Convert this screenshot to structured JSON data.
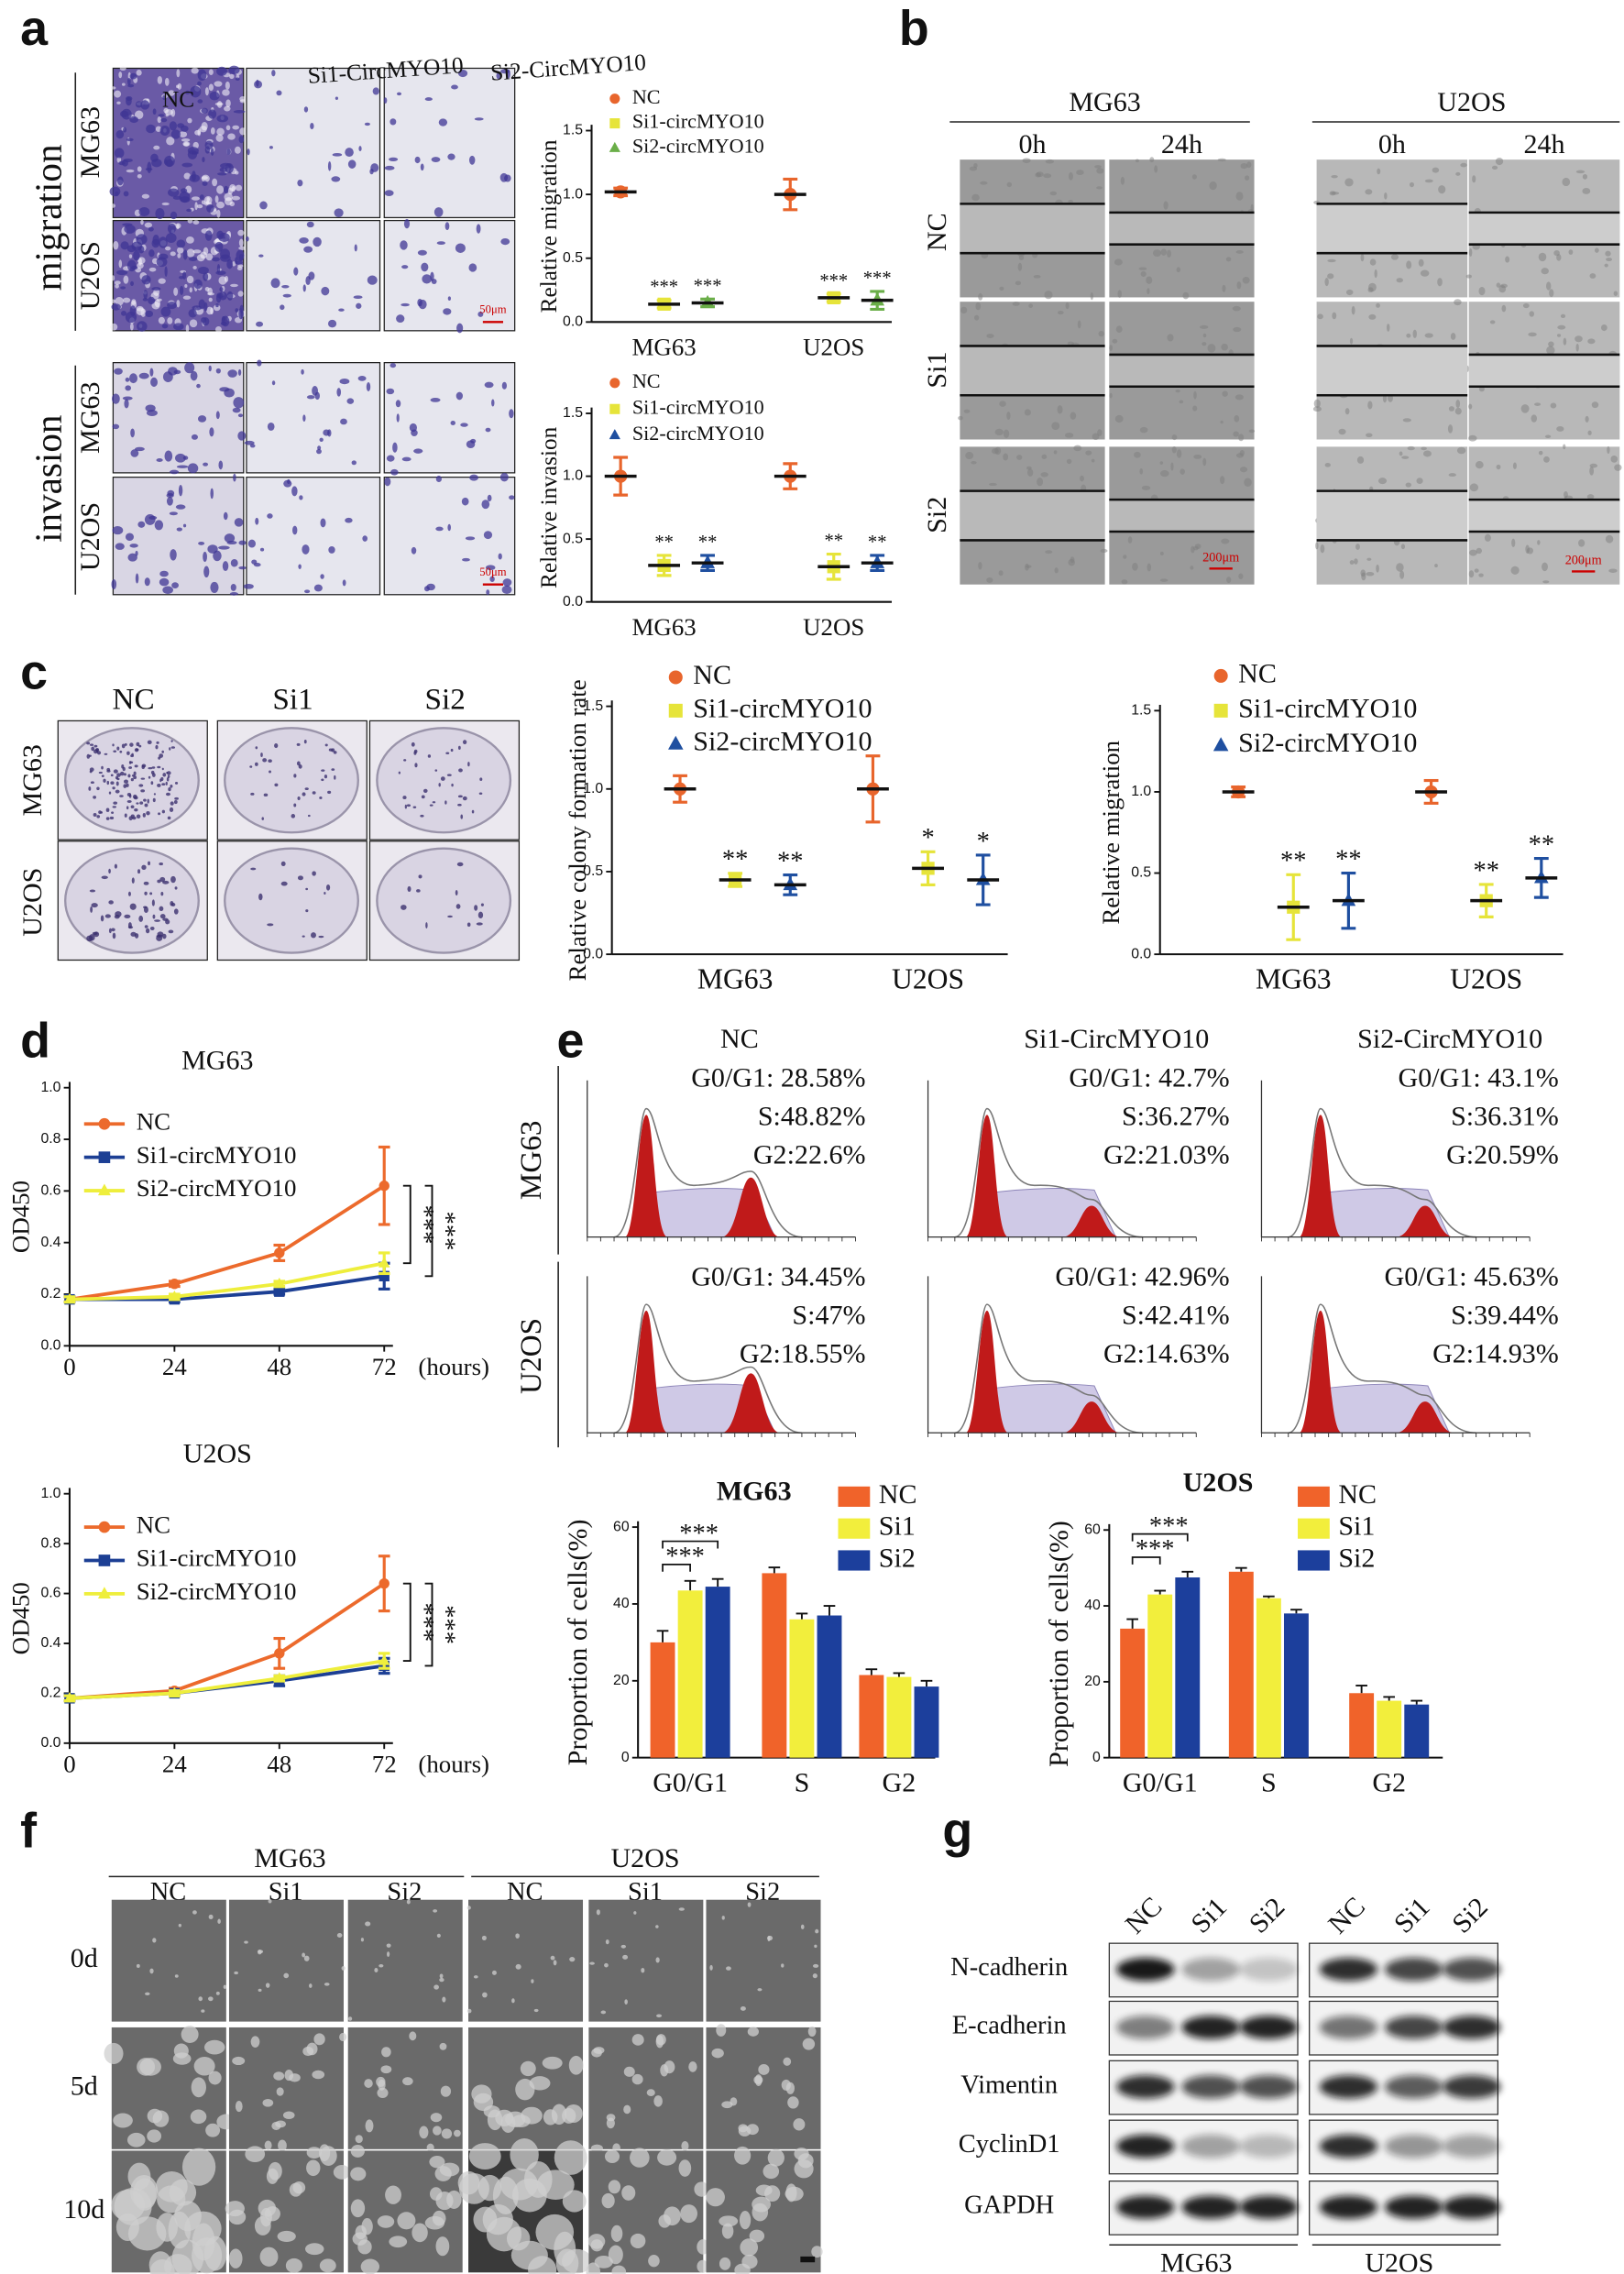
{
  "panel_labels": [
    "a",
    "b",
    "c",
    "d",
    "e",
    "f",
    "g"
  ],
  "panel_a": {
    "columns": [
      "NC",
      "Si1-CircMYO10",
      "Si2-CircMYO10"
    ],
    "groups": [
      "migration",
      "invasion"
    ],
    "rows": [
      "MG63",
      "U2OS"
    ],
    "scale_bar": "50μm"
  },
  "panel_b": {
    "cell_lines": [
      "MG63",
      "U2OS"
    ],
    "times": [
      "0h",
      "24h"
    ],
    "rows": [
      "NC",
      "Si1",
      "Si2"
    ],
    "scale_bar": "200μm"
  },
  "panel_c": {
    "columns": [
      "NC",
      "Si1",
      "Si2"
    ],
    "rows": [
      "MG63",
      "U2OS"
    ]
  },
  "panel_e": {
    "rows": [
      "MG63",
      "U2OS"
    ],
    "columns": [
      "NC",
      "Si1-CircMYO10",
      "Si2-CircMYO10"
    ],
    "stats": [
      [
        [
          "G0/G1: 28.58%",
          "S:48.82%",
          "G2:22.6%"
        ],
        [
          "G0/G1: 42.7%",
          "S:36.27%",
          "G2:21.03%"
        ],
        [
          "G0/G1: 43.1%",
          "S:36.31%",
          "G:20.59%"
        ]
      ],
      [
        [
          "G0/G1: 34.45%",
          "S:47%",
          "G2:18.55%"
        ],
        [
          "G0/G1: 42.96%",
          "S:42.41%",
          "G2:14.63%"
        ],
        [
          "G0/G1: 45.63%",
          "S:39.44%",
          "G2:14.93%"
        ]
      ]
    ]
  },
  "panel_f": {
    "cell_lines": [
      "MG63",
      "U2OS"
    ],
    "columns": [
      "NC",
      "Si1",
      "Si2"
    ],
    "rows": [
      "0d",
      "5d",
      "10d"
    ]
  },
  "panel_g": {
    "columns": [
      "NC",
      "Si1",
      "Si2"
    ],
    "proteins": [
      "N-cadherin",
      "E-cadherin",
      "Vimentin",
      "CyclinD1",
      "GAPDH"
    ],
    "cell_lines": [
      "MG63",
      "U2OS"
    ]
  },
  "chart_data": [
    {
      "type": "dot",
      "y_label": "Relative migration",
      "categories": [
        "MG63",
        "U2OS"
      ],
      "ylim": [
        0,
        1.5
      ],
      "yticks": [
        {
          "value": 0,
          "label": "0.0"
        },
        0.5,
        {
          "value": 1,
          "label": "1.0"
        },
        1.5
      ],
      "series": [
        {
          "name": "NC",
          "color": "#e8652c",
          "marker": "circle",
          "values": [
            1.02,
            1.0
          ],
          "errors": [
            0.03,
            0.12
          ]
        },
        {
          "name": "Si1-circMYO10",
          "color": "#e6e43a",
          "marker": "square",
          "values": [
            0.14,
            0.19
          ],
          "errors": [
            0.03,
            0.03
          ],
          "labels": [
            "***",
            "***"
          ]
        },
        {
          "name": "Si2-circMYO10",
          "color": "#6aae48",
          "marker": "triangle",
          "values": [
            0.15,
            0.17
          ],
          "errors": [
            0.03,
            0.07
          ],
          "labels": [
            "***",
            "***"
          ]
        }
      ]
    },
    {
      "type": "dot",
      "y_label": "Relative invasion",
      "categories": [
        "MG63",
        "U2OS"
      ],
      "ylim": [
        0,
        1.5
      ],
      "yticks": [
        {
          "value": 0,
          "label": "0.0"
        },
        0.5,
        {
          "value": 1,
          "label": "1.0"
        },
        1.5
      ],
      "series": [
        {
          "name": "NC",
          "color": "#e8652c",
          "marker": "circle",
          "values": [
            1.0,
            1.0
          ],
          "errors": [
            0.15,
            0.1
          ]
        },
        {
          "name": "Si1-circMYO10",
          "color": "#e6e43a",
          "marker": "square",
          "values": [
            0.29,
            0.28
          ],
          "errors": [
            0.08,
            0.1
          ],
          "labels": [
            "**",
            "**"
          ]
        },
        {
          "name": "Si2-circMYO10",
          "color": "#1f4fa0",
          "marker": "triangle",
          "values": [
            0.31,
            0.31
          ],
          "errors": [
            0.06,
            0.06
          ],
          "labels": [
            "**",
            "**"
          ]
        }
      ]
    },
    {
      "type": "dot",
      "y_label": "Relative colony formation rate",
      "categories": [
        "MG63",
        "U2OS"
      ],
      "ylim": [
        0,
        1.5
      ],
      "yticks": [
        {
          "value": 0,
          "label": "0.0"
        },
        0.5,
        {
          "value": 1,
          "label": "1.0"
        },
        1.5
      ],
      "series": [
        {
          "name": "NC",
          "color": "#e8652c",
          "marker": "circle",
          "values": [
            1.0,
            1.0
          ],
          "errors": [
            0.08,
            0.2
          ]
        },
        {
          "name": "Si1-circMYO10",
          "color": "#e6e43a",
          "marker": "square",
          "values": [
            0.45,
            0.52
          ],
          "errors": [
            0.04,
            0.1
          ],
          "labels": [
            "**",
            "*"
          ]
        },
        {
          "name": "Si2-circMYO10",
          "color": "#1f4fa0",
          "marker": "triangle",
          "values": [
            0.42,
            0.45
          ],
          "errors": [
            0.06,
            0.15
          ],
          "labels": [
            "**",
            "*"
          ]
        }
      ]
    },
    {
      "type": "dot",
      "y_label": "Relative migration",
      "categories": [
        "MG63",
        "U2OS"
      ],
      "ylim": [
        0,
        1.5
      ],
      "yticks": [
        {
          "value": 0,
          "label": "0.0"
        },
        0.5,
        {
          "value": 1,
          "label": "1.0"
        },
        1.5
      ],
      "series": [
        {
          "name": "NC",
          "color": "#e8652c",
          "marker": "circle",
          "values": [
            1.0,
            1.0
          ],
          "errors": [
            0.03,
            0.07
          ]
        },
        {
          "name": "Si1-circMYO10",
          "color": "#e6e43a",
          "marker": "square",
          "values": [
            0.29,
            0.33
          ],
          "errors": [
            0.2,
            0.1
          ],
          "labels": [
            "**",
            "**"
          ]
        },
        {
          "name": "Si2-circMYO10",
          "color": "#1f4fa0",
          "marker": "triangle",
          "values": [
            0.33,
            0.47
          ],
          "errors": [
            0.17,
            0.12
          ],
          "labels": [
            "**",
            "**"
          ]
        }
      ]
    },
    {
      "type": "line",
      "title": "MG63",
      "y_label": "OD450",
      "x_label": "(hours)",
      "x": [
        0,
        24,
        48,
        72
      ],
      "xlim": [
        0,
        74
      ],
      "xticks": [
        0,
        24,
        48,
        72
      ],
      "ylim": [
        0,
        1
      ],
      "yticks": [
        {
          "value": 0,
          "label": "0.0"
        },
        0.2,
        0.4,
        0.6,
        0.8,
        {
          "value": 1,
          "label": "1.0"
        }
      ],
      "series": [
        {
          "name": "NC",
          "color": "#ec6a2c",
          "marker": "circle",
          "values": [
            0.18,
            0.24,
            0.36,
            0.62
          ],
          "errors": [
            0.01,
            0.01,
            0.03,
            0.15
          ]
        },
        {
          "name": "Si1-circMYO10",
          "color": "#1c3f94",
          "marker": "square",
          "values": [
            0.18,
            0.18,
            0.21,
            0.27
          ],
          "errors": [
            0.01,
            0.01,
            0.01,
            0.05
          ]
        },
        {
          "name": "Si2-circMYO10",
          "color": "#eeee3c",
          "marker": "triangle",
          "values": [
            0.18,
            0.19,
            0.24,
            0.32
          ],
          "errors": [
            0.01,
            0.01,
            0.01,
            0.04
          ]
        }
      ],
      "significance": [
        "***",
        "***"
      ]
    },
    {
      "type": "line",
      "title": "U2OS",
      "y_label": "OD450",
      "x_label": "(hours)",
      "x": [
        0,
        24,
        48,
        72
      ],
      "xlim": [
        0,
        74
      ],
      "xticks": [
        0,
        24,
        48,
        72
      ],
      "ylim": [
        0,
        1
      ],
      "yticks": [
        {
          "value": 0,
          "label": "0.0"
        },
        0.2,
        0.4,
        0.6,
        0.8,
        {
          "value": 1,
          "label": "1.0"
        }
      ],
      "series": [
        {
          "name": "NC",
          "color": "#ec6a2c",
          "marker": "circle",
          "values": [
            0.18,
            0.21,
            0.36,
            0.64
          ],
          "errors": [
            0.01,
            0.01,
            0.06,
            0.11
          ]
        },
        {
          "name": "Si1-circMYO10",
          "color": "#1c3f94",
          "marker": "square",
          "values": [
            0.18,
            0.2,
            0.25,
            0.31
          ],
          "errors": [
            0.01,
            0.01,
            0.02,
            0.03
          ]
        },
        {
          "name": "Si2-circMYO10",
          "color": "#eeee3c",
          "marker": "triangle",
          "values": [
            0.18,
            0.2,
            0.26,
            0.33
          ],
          "errors": [
            0.01,
            0.01,
            0.01,
            0.03
          ]
        }
      ],
      "significance": [
        "***",
        "***"
      ]
    },
    {
      "type": "bar",
      "title": "MG63",
      "y_label": "Proportion of cells(%)",
      "categories": [
        "G0/G1",
        "S",
        "G2"
      ],
      "ylim": [
        0,
        60
      ],
      "yticks": [
        0,
        20,
        40,
        60
      ],
      "series": [
        {
          "name": "NC",
          "color": "#f0632a",
          "values": [
            30,
            48,
            21.5
          ],
          "errors": [
            3,
            1.5,
            1.5
          ]
        },
        {
          "name": "Si1",
          "color": "#f2ee3c",
          "values": [
            43.5,
            36,
            21
          ],
          "errors": [
            2.5,
            1.5,
            1
          ]
        },
        {
          "name": "Si2",
          "color": "#1c3f9c",
          "values": [
            44.5,
            37,
            18.5
          ],
          "errors": [
            2,
            2.5,
            1.5
          ]
        }
      ],
      "significance": [
        "***",
        "***"
      ]
    },
    {
      "type": "bar",
      "title": "U2OS",
      "y_label": "Proportion of cells(%)",
      "categories": [
        "G0/G1",
        "S",
        "G2"
      ],
      "ylim": [
        0,
        60
      ],
      "yticks": [
        0,
        20,
        40,
        60
      ],
      "series": [
        {
          "name": "NC",
          "color": "#f0632a",
          "values": [
            34,
            49,
            17
          ],
          "errors": [
            2.5,
            1,
            2
          ]
        },
        {
          "name": "Si1",
          "color": "#f2ee3c",
          "values": [
            43,
            42,
            15
          ],
          "errors": [
            1,
            0.5,
            1
          ]
        },
        {
          "name": "Si2",
          "color": "#1c3f9c",
          "values": [
            47.5,
            38,
            14
          ],
          "errors": [
            1.5,
            1,
            1
          ]
        }
      ],
      "significance": [
        "***",
        "***"
      ]
    }
  ]
}
